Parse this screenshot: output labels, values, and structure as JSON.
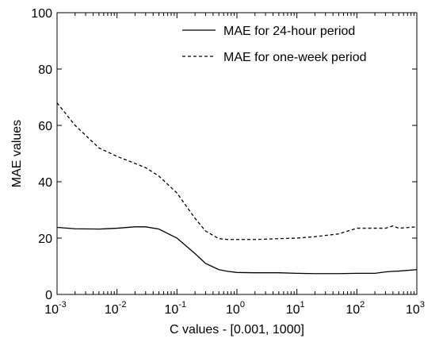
{
  "chart_data": {
    "type": "line",
    "x_label": "C values - [0.001, 1000]",
    "y_label": "MAE values",
    "x_log": true,
    "xlim": [
      0.001,
      1000
    ],
    "ylim": [
      0,
      100
    ],
    "xticks": [
      {
        "value": 0.001,
        "label": "10",
        "exponent": "-3"
      },
      {
        "value": 0.01,
        "label": "10",
        "exponent": "-2"
      },
      {
        "value": 0.1,
        "label": "10",
        "exponent": "-1"
      },
      {
        "value": 1,
        "label": "10",
        "exponent": "0"
      },
      {
        "value": 10,
        "label": "10",
        "exponent": "1"
      },
      {
        "value": 100,
        "label": "10",
        "exponent": "2"
      },
      {
        "value": 1000,
        "label": "10",
        "exponent": "3"
      }
    ],
    "yticks": [
      0,
      20,
      40,
      60,
      80,
      100
    ],
    "grid": false,
    "legend_position": "upper-right",
    "x": [
      0.001,
      0.002,
      0.005,
      0.01,
      0.02,
      0.03,
      0.05,
      0.1,
      0.2,
      0.3,
      0.5,
      0.7,
      1,
      2,
      5,
      10,
      20,
      50,
      100,
      200,
      300,
      400,
      500,
      1000
    ],
    "series": [
      {
        "name": "MAE for 24-hour period",
        "color": "#000000",
        "dash": "solid",
        "values": [
          23.8,
          23.3,
          23.2,
          23.5,
          24,
          24,
          23.2,
          20,
          14.5,
          11,
          8.8,
          8.2,
          7.8,
          7.7,
          7.7,
          7.5,
          7.4,
          7.4,
          7.5,
          7.5,
          8,
          8.2,
          8.3,
          8.8
        ]
      },
      {
        "name": "MAE for one-week period",
        "color": "#000000",
        "dash": "dashed",
        "values": [
          68,
          60,
          52,
          49,
          46.5,
          45,
          42,
          36,
          27,
          22.5,
          19.8,
          19.5,
          19.5,
          19.5,
          19.8,
          20,
          20.5,
          21.5,
          23.5,
          23.5,
          23.5,
          24.3,
          23.5,
          24
        ]
      }
    ]
  }
}
